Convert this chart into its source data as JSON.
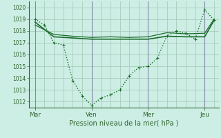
{
  "background_color": "#cceee4",
  "grid_color": "#aaccbb",
  "line_color": "#1a6b2a",
  "marker_color": "#1a6b2a",
  "xlabel": "Pression niveau de la mer( hPa )",
  "ylim": [
    1011.5,
    1020.5
  ],
  "yticks": [
    1012,
    1013,
    1014,
    1015,
    1016,
    1017,
    1018,
    1019,
    1020
  ],
  "xtick_labels": [
    "Mar",
    "Ven",
    "Mer",
    "Jeu"
  ],
  "xtick_positions": [
    0,
    36,
    72,
    108
  ],
  "xlim": [
    -4,
    117
  ],
  "series1": {
    "x": [
      0,
      6,
      12,
      18,
      24,
      30,
      36,
      42,
      48,
      54,
      60,
      66,
      72,
      78,
      84,
      90,
      96,
      102,
      108,
      114
    ],
    "y": [
      1019.0,
      1018.5,
      1017.0,
      1016.8,
      1013.8,
      1012.5,
      1011.7,
      1012.3,
      1012.6,
      1013.0,
      1014.2,
      1014.9,
      1015.0,
      1015.7,
      1017.6,
      1018.0,
      1017.8,
      1017.3,
      1019.8,
      1018.9
    ],
    "linewidth": 1.0,
    "markersize": 3
  },
  "series2": {
    "x": [
      0,
      12,
      24,
      36,
      48,
      60,
      72,
      84,
      96,
      108,
      114
    ],
    "y": [
      1018.75,
      1017.5,
      1017.4,
      1017.3,
      1017.3,
      1017.3,
      1017.3,
      1017.55,
      1017.5,
      1017.5,
      1018.9
    ],
    "linewidth": 1.2
  },
  "series3": {
    "x": [
      0,
      12,
      24,
      36,
      48,
      60,
      72,
      84,
      96,
      108,
      114
    ],
    "y": [
      1018.5,
      1017.7,
      1017.55,
      1017.45,
      1017.5,
      1017.45,
      1017.5,
      1017.85,
      1017.75,
      1017.8,
      1019.0
    ],
    "linewidth": 0.9
  },
  "vline_color": "#8888aa",
  "spine_color": "#336633",
  "tick_color": "#336633"
}
